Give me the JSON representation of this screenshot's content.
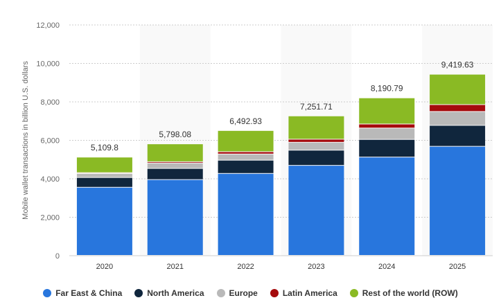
{
  "chart_data": {
    "type": "bar",
    "stacked": true,
    "title": "",
    "xlabel": "",
    "ylabel": "Mobile wallet transactions in billion U.S. dollars",
    "ylim": [
      0,
      12000
    ],
    "yticks": [
      0,
      2000,
      4000,
      6000,
      8000,
      10000,
      12000
    ],
    "ytick_labels": [
      "0",
      "2,000",
      "4,000",
      "6,000",
      "8,000",
      "10,000",
      "12,000"
    ],
    "grid": true,
    "legend_position": "bottom",
    "categories": [
      "2020",
      "2021",
      "2022",
      "2023",
      "2024",
      "2025"
    ],
    "totals": [
      "5,109.8",
      "5,798.08",
      "6,492.93",
      "7,251.71",
      "8,190.79",
      "9,419.63"
    ],
    "series": [
      {
        "name": "Far East & China",
        "color": "#2876dd",
        "values": [
          3540,
          3940,
          4260,
          4680,
          5110,
          5670
        ]
      },
      {
        "name": "North America",
        "color": "#10263d",
        "values": [
          510,
          580,
          690,
          790,
          920,
          1090
        ]
      },
      {
        "name": "Europe",
        "color": "#b9b9b9",
        "values": [
          210,
          280,
          320,
          410,
          590,
          720
        ]
      },
      {
        "name": "Latin America",
        "color": "#a50b0d",
        "values": [
          40,
          70,
          120,
          160,
          210,
          360
        ]
      },
      {
        "name": "Rest of the world (ROW)",
        "color": "#8aba24",
        "values": [
          809.8,
          928.08,
          1102.93,
          1211.71,
          1360.79,
          1579.63
        ]
      }
    ]
  }
}
